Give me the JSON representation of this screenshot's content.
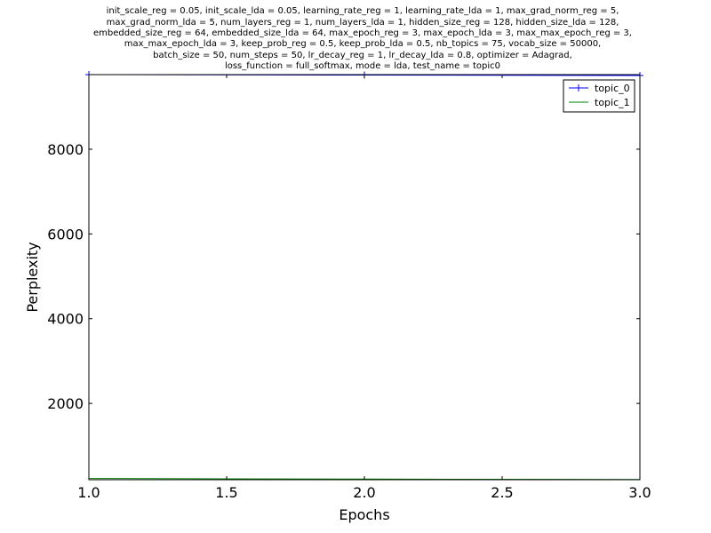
{
  "chart_data": {
    "type": "line",
    "title_lines": [
      "init_scale_reg = 0.05, init_scale_lda = 0.05, learning_rate_reg = 1, learning_rate_lda = 1, max_grad_norm_reg = 5,",
      "max_grad_norm_lda = 5, num_layers_reg = 1, num_layers_lda = 1, hidden_size_reg = 128, hidden_size_lda = 128,",
      "embedded_size_reg = 64, embedded_size_lda = 64, max_epoch_reg = 3, max_epoch_lda = 3, max_max_epoch_reg = 3,",
      "max_max_epoch_lda = 3, keep_prob_reg = 0.5, keep_prob_lda = 0.5, nb_topics = 75, vocab_size = 50000,",
      "batch_size = 50, num_steps = 50, lr_decay_reg = 1, lr_decay_lda = 0.8, optimizer = Adagrad,",
      "loss_function = full_softmax, mode = lda, test_name = topic0"
    ],
    "xlabel": "Epochs",
    "ylabel": "Perplexity",
    "xlim": [
      1.0,
      3.0
    ],
    "ylim": [
      200,
      9760
    ],
    "xticks": [
      1.0,
      1.5,
      2.0,
      2.5,
      3.0
    ],
    "xtick_labels": [
      "1.0",
      "1.5",
      "2.0",
      "2.5",
      "3.0"
    ],
    "yticks": [
      2000,
      4000,
      6000,
      8000
    ],
    "ytick_labels": [
      "2000",
      "4000",
      "6000",
      "8000"
    ],
    "grid": false,
    "legend_position": "top-right",
    "series": [
      {
        "name": "topic_0",
        "color": "#0000ff",
        "marker": "+",
        "x": [
          1,
          2,
          3
        ],
        "y": [
          9760,
          9750,
          9740
        ]
      },
      {
        "name": "topic_1",
        "color": "#008000",
        "marker": "none",
        "x": [
          1,
          2,
          3
        ],
        "y": [
          230,
          215,
          205
        ]
      }
    ]
  }
}
